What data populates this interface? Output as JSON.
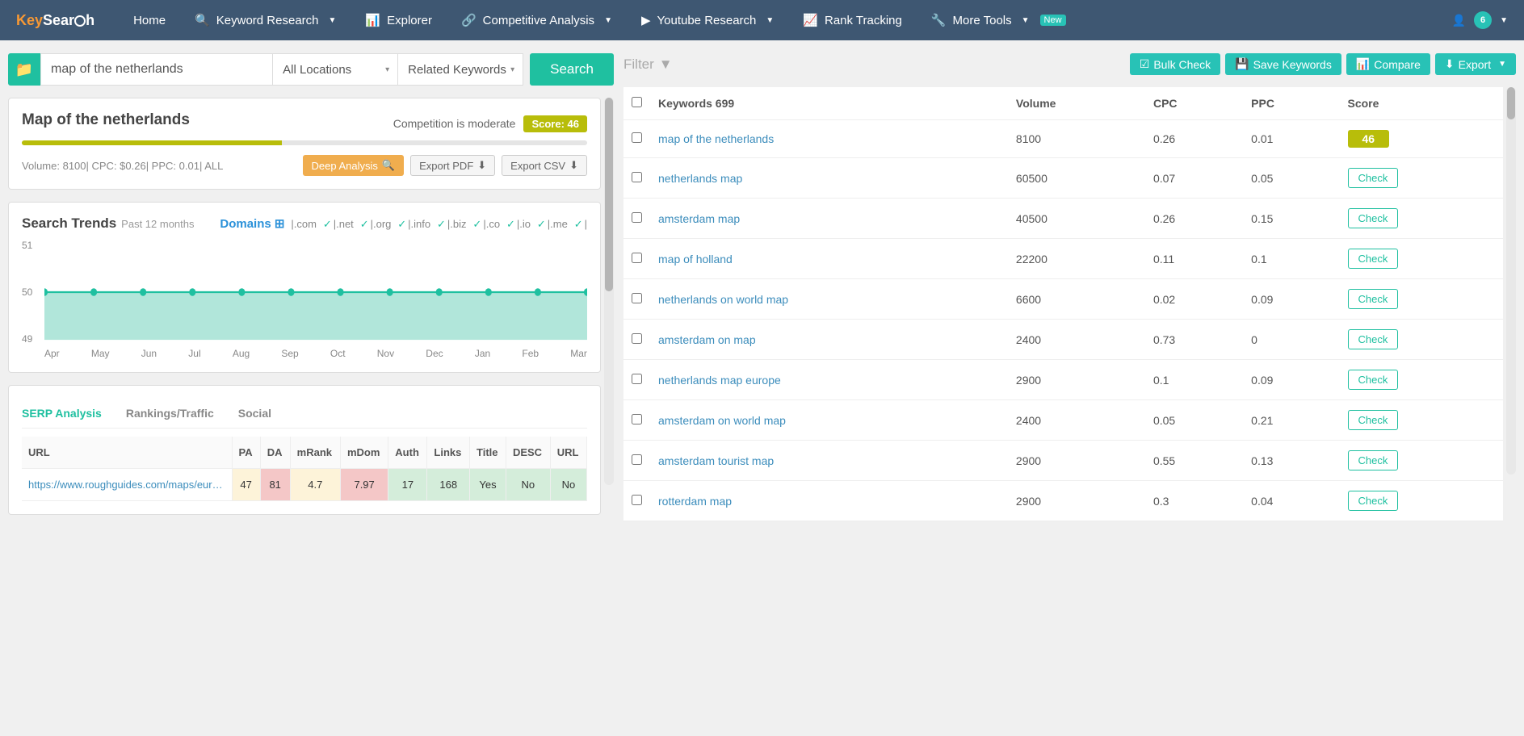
{
  "logo": {
    "part1": "Key",
    "part2": "Sear",
    "part3": "h"
  },
  "nav": {
    "home": "Home",
    "keyword_research": "Keyword Research",
    "explorer": "Explorer",
    "competitive": "Competitive Analysis",
    "youtube": "Youtube Research",
    "rank": "Rank Tracking",
    "more": "More Tools",
    "new_badge": "New",
    "avatar_count": "6"
  },
  "search": {
    "input_value": "map of the netherlands",
    "location": "All Locations",
    "type": "Related Keywords",
    "button": "Search"
  },
  "summary": {
    "title": "Map of the netherlands",
    "competition_text": "Competition is moderate",
    "score_label": "Score: 46",
    "score_pct": 46,
    "stats_text": "Volume: 8100|  CPC: $0.26|  PPC: 0.01|  ALL",
    "deep_analysis": "Deep Analysis",
    "export_pdf": "Export PDF",
    "export_csv": "Export CSV"
  },
  "trends": {
    "title": "Search Trends",
    "subtitle": "Past 12 months",
    "domains_label": "Domains",
    "tlds": [
      ".com",
      ".net",
      ".org",
      ".info",
      ".biz",
      ".co",
      ".io",
      ".me",
      ""
    ],
    "y_labels": [
      "51",
      "50",
      "49"
    ],
    "months": [
      "Apr",
      "May",
      "Jun",
      "Jul",
      "Aug",
      "Sep",
      "Oct",
      "Nov",
      "Dec",
      "Jan",
      "Feb",
      "Mar"
    ],
    "values": [
      50,
      50,
      50,
      50,
      50,
      50,
      50,
      50,
      50,
      50,
      50,
      50
    ],
    "line_color": "#1fc0a0",
    "fill_color": "#7dd5c2",
    "ylim": [
      49,
      51
    ]
  },
  "serp": {
    "tabs": [
      "SERP Analysis",
      "Rankings/Traffic",
      "Social"
    ],
    "headers": [
      "URL",
      "PA",
      "DA",
      "mRank",
      "mDom",
      "Auth",
      "Links",
      "Title",
      "DESC",
      "URL"
    ],
    "rows": [
      {
        "url": "https://www.roughguides.com/maps/euro...",
        "pa": "47",
        "da": "81",
        "mrank": "4.7",
        "mdom": "7.97",
        "auth": "17",
        "links": "168",
        "title": "Yes",
        "desc": "No",
        "url2": "No",
        "colors": [
          "",
          "cell-yel",
          "cell-red",
          "cell-yel",
          "cell-red",
          "cell-grn",
          "cell-grn",
          "cell-grn",
          "cell-grn",
          "cell-grn"
        ]
      }
    ]
  },
  "filter": {
    "label": "Filter",
    "bulk_check": "Bulk Check",
    "save_keywords": "Save Keywords",
    "compare": "Compare",
    "export": "Export"
  },
  "keywords": {
    "header": "Keywords 699",
    "cols": [
      "Volume",
      "CPC",
      "PPC",
      "Score"
    ],
    "check_label": "Check",
    "rows": [
      {
        "kw": "map of the netherlands",
        "vol": "8100",
        "cpc": "0.26",
        "ppc": "0.01",
        "score": "46",
        "has_score": true
      },
      {
        "kw": "netherlands map",
        "vol": "60500",
        "cpc": "0.07",
        "ppc": "0.05",
        "has_score": false
      },
      {
        "kw": "amsterdam map",
        "vol": "40500",
        "cpc": "0.26",
        "ppc": "0.15",
        "has_score": false
      },
      {
        "kw": "map of holland",
        "vol": "22200",
        "cpc": "0.11",
        "ppc": "0.1",
        "has_score": false
      },
      {
        "kw": "netherlands on world map",
        "vol": "6600",
        "cpc": "0.02",
        "ppc": "0.09",
        "has_score": false
      },
      {
        "kw": "amsterdam on map",
        "vol": "2400",
        "cpc": "0.73",
        "ppc": "0",
        "has_score": false
      },
      {
        "kw": "netherlands map europe",
        "vol": "2900",
        "cpc": "0.1",
        "ppc": "0.09",
        "has_score": false
      },
      {
        "kw": "amsterdam on world map",
        "vol": "2400",
        "cpc": "0.05",
        "ppc": "0.21",
        "has_score": false
      },
      {
        "kw": "amsterdam tourist map",
        "vol": "2900",
        "cpc": "0.55",
        "ppc": "0.13",
        "has_score": false
      },
      {
        "kw": "rotterdam map",
        "vol": "2900",
        "cpc": "0.3",
        "ppc": "0.04",
        "has_score": false
      }
    ]
  },
  "colors": {
    "navbar": "#3e5772",
    "teal": "#1fc0a0",
    "teal2": "#28c2b6",
    "olive": "#b8bd0a",
    "orange": "#f0ad4e",
    "link": "#3c8dbc"
  }
}
